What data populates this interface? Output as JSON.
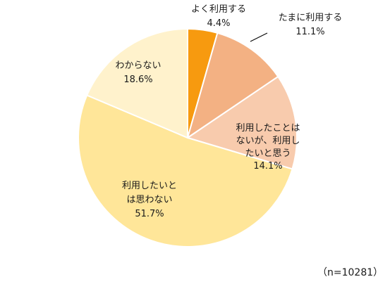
{
  "chart_data": {
    "type": "pie",
    "slices": [
      {
        "lines": [
          "よく利用する",
          "4.4%"
        ],
        "value": 4.4,
        "color": "#F79A0F"
      },
      {
        "lines": [
          "たまに利用する",
          "11.1%"
        ],
        "value": 11.1,
        "color": "#F3B183"
      },
      {
        "lines": [
          "利用したことは",
          "ないが、利用し",
          "たいと思う",
          "14.1%"
        ],
        "value": 14.1,
        "color": "#F8CBAD"
      },
      {
        "lines": [
          "利用したいと",
          "は思わない",
          "51.7%"
        ],
        "value": 51.7,
        "color": "#FFE699"
      },
      {
        "lines": [
          "わからない",
          "18.6%"
        ],
        "value": 18.6,
        "color": "#FFF2CC"
      }
    ],
    "start_angle_deg": 0,
    "direction": "clockwise"
  },
  "sample_note": "（n=10281）"
}
